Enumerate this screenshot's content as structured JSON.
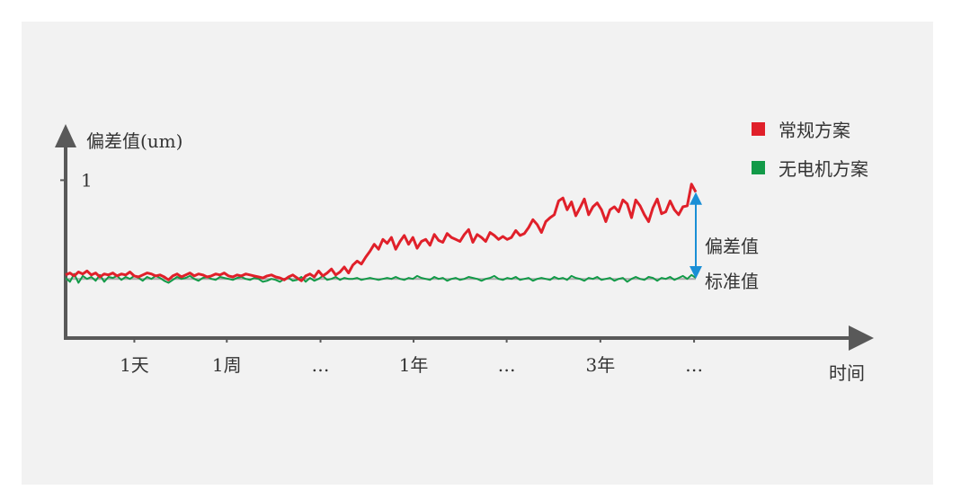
{
  "chart_data": {
    "type": "line",
    "title": "",
    "ylabel": "偏差值(um)",
    "xlabel": "时间",
    "y_ticks": [
      {
        "value": 1,
        "label": "1"
      }
    ],
    "ylim": [
      -0.6,
      1.35
    ],
    "x_ticks": [
      {
        "pos": 0.11,
        "label": "1天"
      },
      {
        "pos": 0.258,
        "label": "1周"
      },
      {
        "pos": 0.408,
        "label": "…"
      },
      {
        "pos": 0.557,
        "label": "1年"
      },
      {
        "pos": 0.706,
        "label": "…"
      },
      {
        "pos": 0.856,
        "label": "3年"
      },
      {
        "pos": 1.006,
        "label": "…"
      }
    ],
    "grid": false,
    "legend_position": "top-right",
    "legend": [
      {
        "label": "常规方案",
        "color": "#e0202a"
      },
      {
        "label": "无电机方案",
        "color": "#129a48"
      }
    ],
    "series": [
      {
        "name": "常规方案",
        "color": "#e0202a",
        "values": [
          0.04,
          0.06,
          0.03,
          0.07,
          0.05,
          0.08,
          0.04,
          0.06,
          0.02,
          0.05,
          0.04,
          0.06,
          0.03,
          0.05,
          0.04,
          0.07,
          0.03,
          0.02,
          0.04,
          0.06,
          0.05,
          0.03,
          0.04,
          0.02,
          -0.01,
          0.03,
          0.05,
          0.02,
          0.04,
          0.06,
          0.03,
          0.05,
          0.04,
          0.02,
          0.03,
          0.05,
          0.04,
          0.06,
          0.03,
          0.02,
          0.04,
          0.03,
          0.05,
          0.04,
          0.03,
          0.02,
          0.01,
          0.03,
          0.04,
          0.02,
          0.01,
          -0.01,
          0.02,
          0.04,
          0.01,
          -0.02,
          0.03,
          0.05,
          0.02,
          0.08,
          0.03,
          0.06,
          0.1,
          0.04,
          0.07,
          0.12,
          0.06,
          0.14,
          0.18,
          0.15,
          0.22,
          0.28,
          0.35,
          0.3,
          0.4,
          0.36,
          0.42,
          0.3,
          0.38,
          0.44,
          0.35,
          0.42,
          0.31,
          0.38,
          0.4,
          0.34,
          0.45,
          0.39,
          0.37,
          0.46,
          0.42,
          0.4,
          0.38,
          0.45,
          0.5,
          0.37,
          0.45,
          0.42,
          0.38,
          0.47,
          0.44,
          0.4,
          0.43,
          0.4,
          0.42,
          0.49,
          0.44,
          0.46,
          0.52,
          0.6,
          0.55,
          0.47,
          0.58,
          0.62,
          0.65,
          0.79,
          0.82,
          0.7,
          0.78,
          0.64,
          0.72,
          0.81,
          0.65,
          0.73,
          0.77,
          0.7,
          0.58,
          0.7,
          0.73,
          0.68,
          0.8,
          0.76,
          0.62,
          0.8,
          0.74,
          0.65,
          0.58,
          0.72,
          0.81,
          0.66,
          0.68,
          0.79,
          0.7,
          0.65,
          0.73,
          0.74,
          0.96,
          0.88
        ]
      },
      {
        "name": "无电机方案",
        "color": "#129a48",
        "values": [
          0.01,
          -0.03,
          0.05,
          -0.04,
          0.03,
          0.0,
          0.02,
          -0.02,
          0.04,
          -0.03,
          0.02,
          0.01,
          0.03,
          -0.01,
          0.02,
          0.0,
          0.03,
          0.01,
          -0.02,
          0.02,
          0.0,
          0.03,
          0.01,
          -0.02,
          -0.04,
          -0.01,
          0.02,
          0.0,
          0.01,
          0.03,
          0.0,
          -0.02,
          0.01,
          0.02,
          0.0,
          -0.01,
          0.02,
          0.01,
          0.0,
          -0.01,
          0.01,
          0.02,
          0.0,
          -0.01,
          0.01,
          0.0,
          -0.03,
          -0.02,
          0.0,
          -0.01,
          -0.03,
          0.0,
          0.01,
          -0.02,
          -0.01,
          0.02,
          -0.03,
          0.01,
          -0.02,
          0.0,
          0.03,
          -0.01,
          0.0,
          0.02,
          -0.01,
          0.01,
          0.0,
          0.0,
          0.01,
          -0.01,
          0.0,
          0.01,
          0.0,
          -0.01,
          0.0,
          0.01,
          0.0,
          0.02,
          0.0,
          -0.01,
          0.01,
          0.0,
          0.03,
          0.01,
          0.0,
          -0.01,
          0.02,
          0.0,
          0.01,
          -0.02,
          0.0,
          0.01,
          -0.01,
          0.0,
          0.02,
          0.01,
          0.0,
          -0.02,
          0.0,
          0.01,
          0.03,
          0.0,
          -0.01,
          0.01,
          0.0,
          0.02,
          -0.01,
          0.0,
          0.01,
          -0.02,
          0.0,
          0.01,
          0.0,
          -0.01,
          0.02,
          0.0,
          0.01,
          -0.01,
          0.03,
          0.01,
          0.0,
          -0.02,
          0.01,
          0.0,
          0.02,
          -0.01,
          0.0,
          0.01,
          -0.02,
          0.0,
          0.01,
          -0.03,
          0.0,
          0.02,
          0.0,
          -0.01,
          0.02,
          0.01,
          -0.02,
          0.01,
          0.0,
          0.02,
          -0.01,
          0.01,
          0.03,
          0.0,
          0.04,
          0.01
        ]
      },
      {
        "name": "标准值",
        "color": "#aaaaaa",
        "values": [
          0,
          0
        ]
      }
    ],
    "annotations": [
      {
        "label": "偏差值",
        "type": "double-arrow",
        "color": "#1a8fd6"
      },
      {
        "label": "标准值",
        "type": "reference-line"
      }
    ]
  }
}
